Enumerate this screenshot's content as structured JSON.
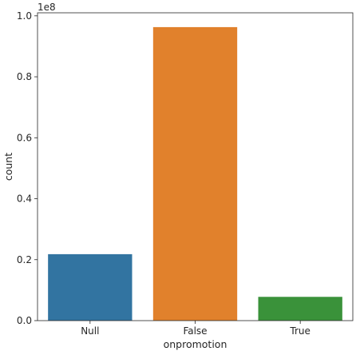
{
  "chart_data": {
    "type": "bar",
    "categories": [
      "Null",
      "False",
      "True"
    ],
    "values": [
      21800000,
      96300000,
      7800000
    ],
    "colors": [
      "#3274a1",
      "#e1812c",
      "#3a923a"
    ],
    "xlabel": "onpromotion",
    "ylabel": "count",
    "ylim": [
      0,
      101000000
    ],
    "y_ticks": [
      0,
      20000000,
      40000000,
      60000000,
      80000000,
      100000000
    ],
    "y_tick_labels": [
      "0.0",
      "0.2",
      "0.4",
      "0.6",
      "0.8",
      "1.0"
    ],
    "y_offset_label": "1e8",
    "grid": false,
    "legend": false
  }
}
